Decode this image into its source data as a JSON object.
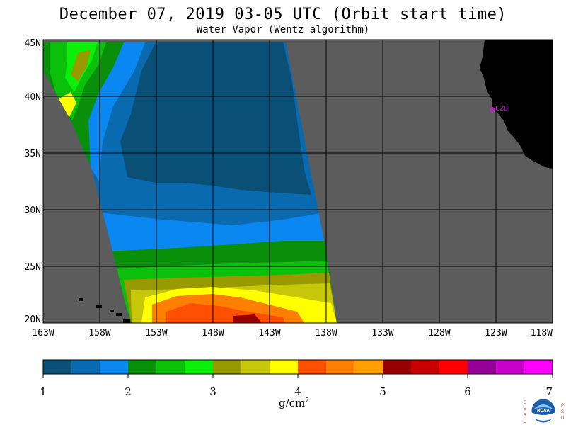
{
  "title": "December 07, 2019  03-05 UTC  (Orbit start time)",
  "subtitle": "Water Vapor (Wentz algorithm)",
  "map": {
    "lat_labels": [
      "45N",
      "40N",
      "35N",
      "30N",
      "25N",
      "20N"
    ],
    "lon_labels": [
      "163W",
      "158W",
      "153W",
      "148W",
      "143W",
      "138W",
      "133W",
      "128W",
      "123W",
      "118W"
    ],
    "station_label": "CZD",
    "station_color": "#ff00ff",
    "land_color": "#000000",
    "nodata_color": "#5c5c5c",
    "grid_color": "#000000"
  },
  "colorbar": {
    "colors": [
      "#0a4f75",
      "#0a6ab0",
      "#0a87f0",
      "#0a8f0a",
      "#0ac00a",
      "#0af00a",
      "#999900",
      "#c7c70a",
      "#ffff00",
      "#ff4f00",
      "#ff7f00",
      "#ffa000",
      "#970000",
      "#c80000",
      "#ff0000",
      "#970097",
      "#c800c8",
      "#ff00ff"
    ],
    "tick_labels": [
      "1",
      "2",
      "3",
      "4",
      "5",
      "6",
      "7"
    ],
    "units": "g/cm",
    "units_sup": "2"
  },
  "logo": {
    "left_letters": [
      "E",
      "S",
      "R",
      "L"
    ],
    "right_letters": [
      "P",
      "S",
      "D"
    ],
    "name": "NOAA"
  }
}
